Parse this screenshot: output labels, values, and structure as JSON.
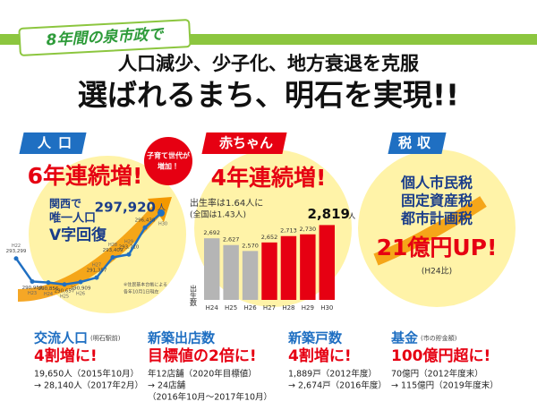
{
  "header": {
    "banner": "8年間の泉市政で",
    "subtitle": "人口減少、少子化、地方衰退を克服",
    "title": "選ばれるまち、明石を実現!!"
  },
  "population": {
    "label": "人口",
    "bubble": [
      "子育て世代が",
      "増加！"
    ],
    "headline": "6年連続増!",
    "claim": [
      "関西で",
      "唯一人口",
      "V字回復"
    ],
    "unit": "人",
    "note": [
      "※住民基本台帳による",
      "各年10月1日現在"
    ],
    "chart": {
      "type": "line",
      "categories": [
        "H22",
        "H23",
        "H24",
        "H25",
        "H26",
        "H27",
        "H28",
        "H29",
        null,
        "H30"
      ],
      "values": [
        293299,
        290959,
        290856,
        290657,
        290909,
        291357,
        293409,
        293710,
        296438,
        297920
      ],
      "value_labels": [
        "293,299",
        "290,959",
        "290,856",
        "290,657",
        "290,909",
        "291,357",
        "293,409",
        "293,710",
        "296,438",
        "297,920"
      ],
      "ylim": [
        289000,
        299000
      ],
      "color": "#1f6fc2"
    }
  },
  "births": {
    "label": "赤ちゃん",
    "headline": "4年連続増!",
    "note": [
      "出生率は1.64人に",
      "(全国は1.43人)"
    ],
    "unit": "人",
    "chart": {
      "type": "bar",
      "y_label": "出生数",
      "categories": [
        "H24",
        "H25",
        "H26",
        "H27",
        "H28",
        "H29",
        "H30"
      ],
      "values": [
        2692,
        2627,
        2570,
        2652,
        2713,
        2730,
        2819
      ],
      "value_labels": [
        "2,692",
        "2,627",
        "2,570",
        "2,652",
        "2,713",
        "2,730",
        "2,819"
      ],
      "colors": [
        "#b5b5b5",
        "#b5b5b5",
        "#b5b5b5",
        "#e60012",
        "#e60012",
        "#e60012",
        "#e60012"
      ],
      "ylim": [
        2100,
        2900
      ]
    }
  },
  "tax": {
    "label": "税収",
    "items": [
      "個人市民税",
      "固定資産税",
      "都市計画税"
    ],
    "headline": "21億円UP!",
    "note": "(H24比)"
  },
  "stats": [
    {
      "title": "交流人口",
      "sub": "(明石駅前)",
      "headline": "4割増に!",
      "lines": [
        "19,650人（2015年10月）",
        "→ 28,140人（2017年2月）"
      ]
    },
    {
      "title": "新築出店数",
      "sub": null,
      "headline": "目標値の2倍に!",
      "lines": [
        "年12店舗（2020年目標値）",
        "→ 24店舗",
        "（2016年10月〜2017年10月）"
      ]
    },
    {
      "title": "新築戸数",
      "sub": null,
      "headline": "4割増に!",
      "lines": [
        "1,889戸（2012年度）",
        "→ 2,674戸（2016年度）"
      ]
    },
    {
      "title": "基金",
      "sub": "(市の貯金額)",
      "headline": "100億円超に!",
      "lines": [
        "70億円（2012年度末）",
        "→ 115億円（2019年度末）"
      ]
    }
  ]
}
